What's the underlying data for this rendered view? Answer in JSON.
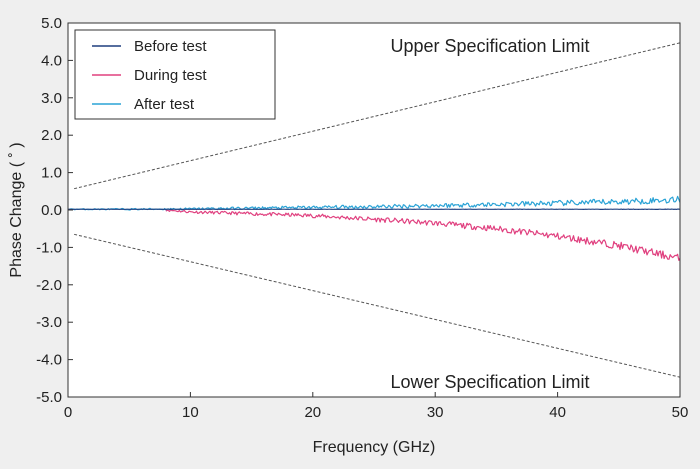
{
  "chart_data": {
    "type": "line",
    "title": "",
    "xlabel": "Frequency (GHz)",
    "ylabel": "Phase Change ( ˚ )",
    "xlim": [
      0,
      50
    ],
    "ylim": [
      -5.0,
      5.0
    ],
    "xticks": [
      0,
      10,
      20,
      30,
      40,
      50
    ],
    "yticks": [
      -5.0,
      -4.0,
      -3.0,
      -2.0,
      -1.0,
      0.0,
      1.0,
      2.0,
      3.0,
      4.0,
      5.0
    ],
    "x_tick_labels": [
      "0",
      "10",
      "20",
      "30",
      "40",
      "50"
    ],
    "y_tick_labels": [
      "-5.0",
      "-4.0",
      "-3.0",
      "-2.0",
      "-1.0",
      "0.0",
      "1.0",
      "2.0",
      "3.0",
      "4.0",
      "5.0"
    ],
    "grid": false,
    "legend_position": "top-left",
    "series": [
      {
        "name": "Before test",
        "color": "#1f3f7f",
        "x": [
          0,
          5,
          10,
          15,
          20,
          25,
          30,
          35,
          40,
          45,
          50
        ],
        "y": [
          0.02,
          0.02,
          0.02,
          0.02,
          0.02,
          0.02,
          0.02,
          0.02,
          0.02,
          0.02,
          0.02
        ]
      },
      {
        "name": "During test",
        "color": "#e0407f",
        "x": [
          8,
          10,
          15,
          20,
          25,
          30,
          35,
          40,
          45,
          50
        ],
        "y": [
          0.0,
          -0.05,
          -0.1,
          -0.15,
          -0.25,
          -0.35,
          -0.5,
          -0.7,
          -0.95,
          -1.3
        ]
      },
      {
        "name": "After test",
        "color": "#2aa3d6",
        "x": [
          0,
          5,
          10,
          15,
          20,
          25,
          30,
          35,
          40,
          45,
          50
        ],
        "y": [
          0.02,
          0.02,
          0.03,
          0.05,
          0.07,
          0.09,
          0.12,
          0.15,
          0.18,
          0.22,
          0.28
        ]
      }
    ],
    "limits": [
      {
        "name": "Upper Specification Limit",
        "x": [
          0.5,
          50
        ],
        "y": [
          0.57,
          4.47
        ]
      },
      {
        "name": "Lower Specification Limit",
        "x": [
          0.5,
          50
        ],
        "y": [
          -0.65,
          -4.47
        ]
      }
    ],
    "annotations": {
      "upper": "Upper Specification Limit",
      "lower": "Lower Specification Limit"
    }
  }
}
